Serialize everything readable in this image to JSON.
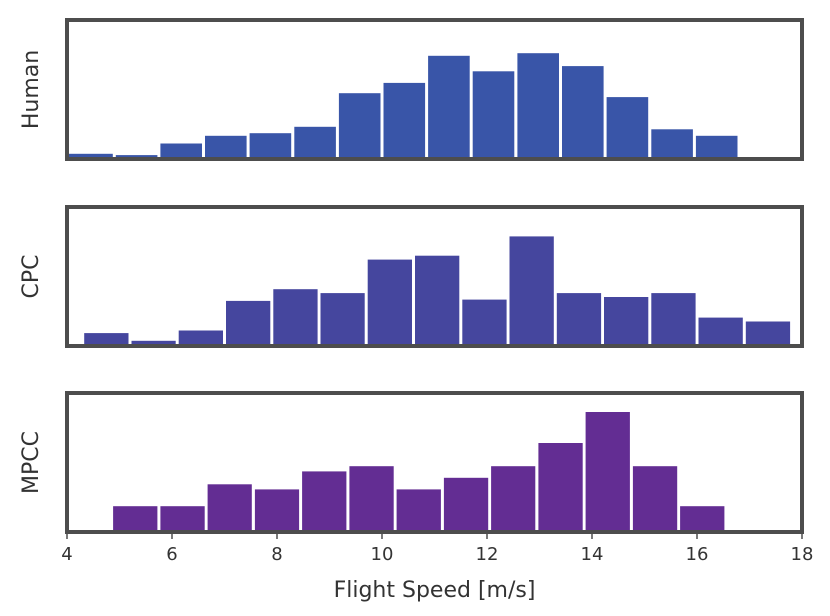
{
  "chart_data": [
    {
      "type": "bar",
      "ylabel": "Human",
      "xlim": [
        4,
        18
      ],
      "bin_edges": [
        4.0,
        4.9,
        5.75,
        6.6,
        7.45,
        8.3,
        9.15,
        10.0,
        10.85,
        11.7,
        12.55,
        13.4,
        14.25,
        15.1,
        15.95,
        16.8
      ],
      "values": [
        0.04,
        0.03,
        0.12,
        0.18,
        0.2,
        0.25,
        0.51,
        0.59,
        0.8,
        0.68,
        0.82,
        0.72,
        0.48,
        0.23,
        0.18
      ],
      "color": "#3955a8",
      "ytick_labels": false
    },
    {
      "type": "bar",
      "ylabel": "CPC",
      "xlim": [
        4,
        18
      ],
      "bin_edges": [
        4.3,
        5.2,
        6.1,
        7.0,
        7.9,
        8.8,
        9.7,
        10.6,
        11.5,
        12.4,
        13.3,
        14.2,
        15.1,
        16.0,
        16.9,
        17.8
      ],
      "values": [
        0.1,
        0.04,
        0.12,
        0.35,
        0.44,
        0.41,
        0.67,
        0.7,
        0.36,
        0.85,
        0.41,
        0.38,
        0.41,
        0.22,
        0.19
      ],
      "color": "#45469e",
      "ytick_labels": false
    },
    {
      "type": "bar",
      "ylabel": "MPCC",
      "xlabel": "Flight Speed [m/s]",
      "xlim": [
        4,
        18
      ],
      "xticks": [
        "4",
        "6",
        "8",
        "10",
        "12",
        "14",
        "16",
        "18"
      ],
      "bin_edges": [
        4.85,
        5.75,
        6.65,
        7.55,
        8.45,
        9.35,
        10.25,
        11.15,
        12.05,
        12.95,
        13.85,
        14.75,
        15.65,
        16.55
      ],
      "values": [
        0.2,
        0.2,
        0.37,
        0.33,
        0.47,
        0.51,
        0.33,
        0.42,
        0.51,
        0.69,
        0.93,
        0.51,
        0.2
      ],
      "color": "#632d93",
      "ytick_labels": false
    }
  ]
}
